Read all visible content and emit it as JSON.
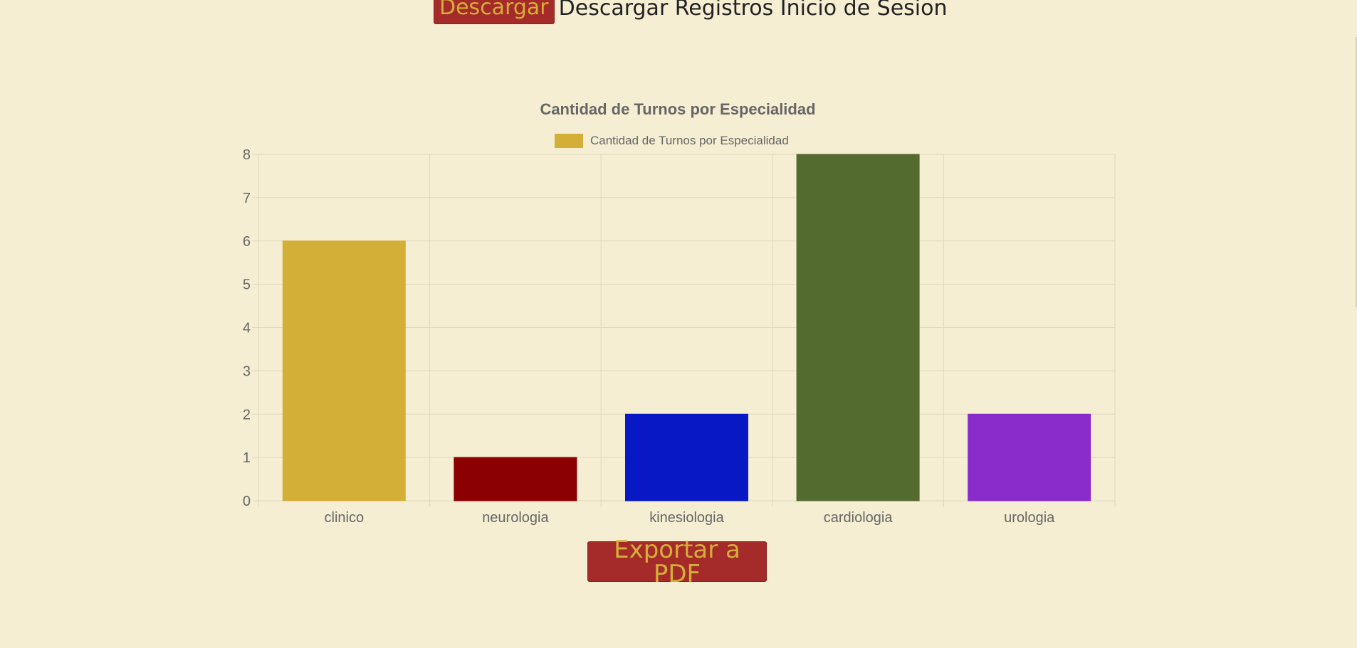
{
  "download": {
    "button_label": "Descargar",
    "caption": "Descargar Registros Inicio de Sesion"
  },
  "export": {
    "button_label": "Exportar a PDF"
  },
  "colors": {
    "background": "#f5eed2",
    "button_bg": "#a52a2a",
    "button_text": "#d4af37",
    "grid": "#e0d8bd",
    "text": "#666666"
  },
  "chart_data": {
    "type": "bar",
    "title": "Cantidad de Turnos por Especialidad",
    "legend": {
      "position": "top",
      "label": "Cantidad de Turnos por Especialidad",
      "color": "#d4af37"
    },
    "categories": [
      "clinico",
      "neurologia",
      "kinesiologia",
      "cardiologia",
      "urologia"
    ],
    "values": [
      6,
      1,
      2,
      8,
      2
    ],
    "bar_colors": [
      "#d4af37",
      "#8b0000",
      "#0818c4",
      "#546b2f",
      "#8a2bcc"
    ],
    "ylim": [
      0,
      8
    ],
    "yticks": [
      "0",
      "1",
      "2",
      "3",
      "4",
      "5",
      "6",
      "7",
      "8"
    ],
    "grid": true,
    "xlabel": "",
    "ylabel": ""
  }
}
